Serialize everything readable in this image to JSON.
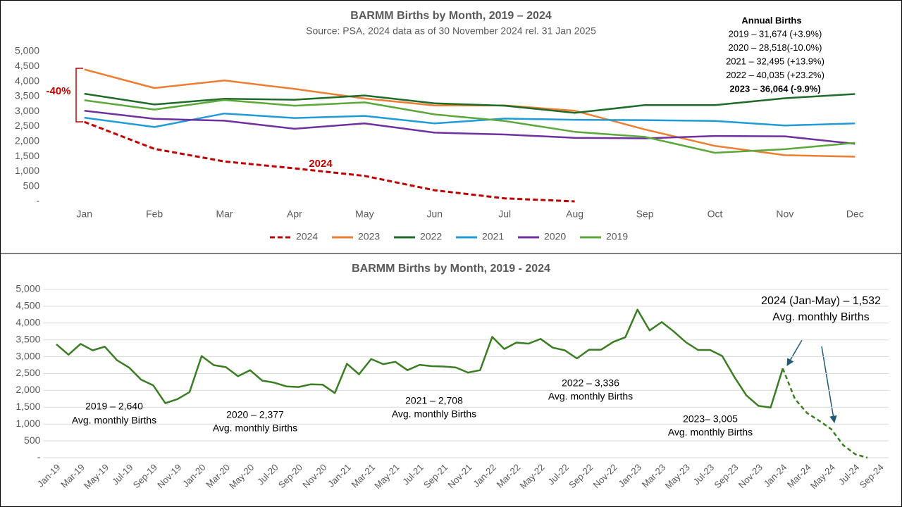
{
  "chart_data": [
    {
      "type": "line",
      "title": "BARMM Births by Month, 2019 – 2024",
      "subtitle": "Source: PSA, 2024 data as of 30 November 2024 rel. 31 Jan 2025",
      "categories": [
        "Jan",
        "Feb",
        "Mar",
        "Apr",
        "May",
        "Jun",
        "Jul",
        "Aug",
        "Sep",
        "Oct",
        "Nov",
        "Dec"
      ],
      "series": [
        {
          "name": "2024",
          "color": "#c00000",
          "dashed": true,
          "values": [
            2650,
            1750,
            1330,
            1100,
            850,
            370,
            100,
            0,
            null,
            null,
            null,
            null
          ]
        },
        {
          "name": "2023",
          "color": "#ed7d31",
          "values": [
            4400,
            3780,
            4030,
            3750,
            3430,
            3200,
            3200,
            3020,
            2400,
            1850,
            1540,
            1490
          ]
        },
        {
          "name": "2022",
          "color": "#1e6b2a",
          "values": [
            3590,
            3230,
            3420,
            3390,
            3530,
            3270,
            3190,
            2950,
            3210,
            3210,
            3440,
            3580
          ]
        },
        {
          "name": "2021",
          "color": "#1f9bd7",
          "values": [
            2790,
            2480,
            2930,
            2780,
            2850,
            2600,
            2760,
            2720,
            2710,
            2680,
            2530,
            2600
          ]
        },
        {
          "name": "2020",
          "color": "#7030a0",
          "values": [
            3020,
            2750,
            2690,
            2420,
            2600,
            2290,
            2230,
            2120,
            2100,
            2180,
            2170,
            1920
          ]
        },
        {
          "name": "2019",
          "color": "#5aa83a",
          "values": [
            3370,
            3060,
            3380,
            3190,
            3300,
            2900,
            2680,
            2320,
            2150,
            1620,
            1740,
            1950
          ]
        }
      ],
      "ylim": [
        0,
        5000
      ],
      "yticks": [
        {
          "value": 0,
          "label": "-"
        },
        500,
        {
          "value": 1000,
          "label": "1,000"
        },
        {
          "value": 1500,
          "label": "1,500"
        },
        {
          "value": 2000,
          "label": "2,000"
        },
        {
          "value": 2500,
          "label": "2,500"
        },
        {
          "value": 3000,
          "label": "3,000"
        },
        {
          "value": 3500,
          "label": "3,500"
        },
        {
          "value": 4000,
          "label": "4,000"
        },
        {
          "value": 4500,
          "label": "4,500"
        },
        {
          "value": 5000,
          "label": "5,000"
        }
      ],
      "grid": false,
      "legend": "bottom",
      "annotations": [
        {
          "text": "-40%",
          "color": "#c00000"
        },
        {
          "text": "2024",
          "color": "#c00000"
        }
      ],
      "annual_births": {
        "title": "Annual Births",
        "lines": [
          "2019 – 31,674 (+3.9%)",
          "2020 – 28,518(-10.0%)",
          "2021 – 32,495 (+13.9%)",
          "2022 – 40,035 (+23.2%)",
          "2023 – 36,064 (-9.9%)"
        ]
      }
    },
    {
      "type": "line",
      "title": "BARMM Births by Month, 2019 - 2024",
      "categories": [
        "Jan-19",
        null,
        "Mar-19",
        null,
        "May-19",
        null,
        "Jul-19",
        null,
        "Sep-19",
        null,
        "Nov-19",
        null,
        "Jan-20",
        null,
        "Mar-20",
        null,
        "May-20",
        null,
        "Jul-20",
        null,
        "Sep-20",
        null,
        "Nov-20",
        null,
        "Jan-21",
        null,
        "Mar-21",
        null,
        "May-21",
        null,
        "Jul-21",
        null,
        "Sep-21",
        null,
        "Nov-21",
        null,
        "Jan-22",
        null,
        "Mar-22",
        null,
        "May-22",
        null,
        "Jul-22",
        null,
        "Sep-22",
        null,
        "Nov-22",
        null,
        "Jan-23",
        null,
        "Mar-23",
        null,
        "May-23",
        null,
        "Jul-23",
        null,
        "Sep-23",
        null,
        "Nov-23",
        null,
        "Jan-24",
        null,
        "Mar-24",
        null,
        "May-24",
        null,
        "Jul-24",
        null,
        "Sep-24"
      ],
      "series": [
        {
          "color": "#3a7d22",
          "values": [
            3370,
            3060,
            3380,
            3190,
            3300,
            2900,
            2680,
            2320,
            2150,
            1620,
            1740,
            1950,
            3020,
            2750,
            2690,
            2420,
            2600,
            2290,
            2230,
            2120,
            2100,
            2180,
            2170,
            1920,
            2790,
            2480,
            2930,
            2780,
            2850,
            2600,
            2760,
            2720,
            2710,
            2680,
            2530,
            2600,
            3590,
            3230,
            3420,
            3390,
            3530,
            3270,
            3190,
            2950,
            3210,
            3210,
            3440,
            3580,
            4400,
            3780,
            4030,
            3750,
            3430,
            3200,
            3200,
            3020,
            2400,
            1850,
            1540,
            1490,
            2650,
            null,
            null,
            null,
            null,
            null,
            null,
            null,
            null
          ]
        },
        {
          "color": "#3a7d22",
          "dashed": true,
          "values": [
            null,
            null,
            null,
            null,
            null,
            null,
            null,
            null,
            null,
            null,
            null,
            null,
            null,
            null,
            null,
            null,
            null,
            null,
            null,
            null,
            null,
            null,
            null,
            null,
            null,
            null,
            null,
            null,
            null,
            null,
            null,
            null,
            null,
            null,
            null,
            null,
            null,
            null,
            null,
            null,
            null,
            null,
            null,
            null,
            null,
            null,
            null,
            null,
            null,
            null,
            null,
            null,
            null,
            null,
            null,
            null,
            null,
            null,
            null,
            null,
            2650,
            1750,
            1330,
            1100,
            850,
            370,
            100,
            0,
            null
          ]
        }
      ],
      "ylim": [
        0,
        5000
      ],
      "yticks": [
        {
          "value": 0,
          "label": "-"
        },
        500,
        {
          "value": 1000,
          "label": "1,000"
        },
        {
          "value": 1500,
          "label": "1,500"
        },
        {
          "value": 2000,
          "label": "2,000"
        },
        {
          "value": 2500,
          "label": "2,500"
        },
        {
          "value": 3000,
          "label": "3,000"
        },
        {
          "value": 3500,
          "label": "3,500"
        },
        {
          "value": 4000,
          "label": "4,000"
        },
        {
          "value": 4500,
          "label": "4,500"
        },
        {
          "value": 5000,
          "label": "5,000"
        }
      ],
      "grid": true,
      "annotations": [
        {
          "text": "2019 – 2,640"
        },
        {
          "text": "Avg. monthly Births"
        },
        {
          "text": "2020 – 2,377"
        },
        {
          "text": "Avg. monthly Births"
        },
        {
          "text": "2021 – 2,708"
        },
        {
          "text": "Avg. monthly Births"
        },
        {
          "text": "2022 – 3,336"
        },
        {
          "text": "Avg. monthly Births"
        },
        {
          "text": "2023– 3,005"
        },
        {
          "text": "Avg. monthly Births"
        },
        {
          "text": "2024 (Jan-May) – 1,532"
        },
        {
          "text": "Avg. monthly Births"
        }
      ]
    }
  ]
}
